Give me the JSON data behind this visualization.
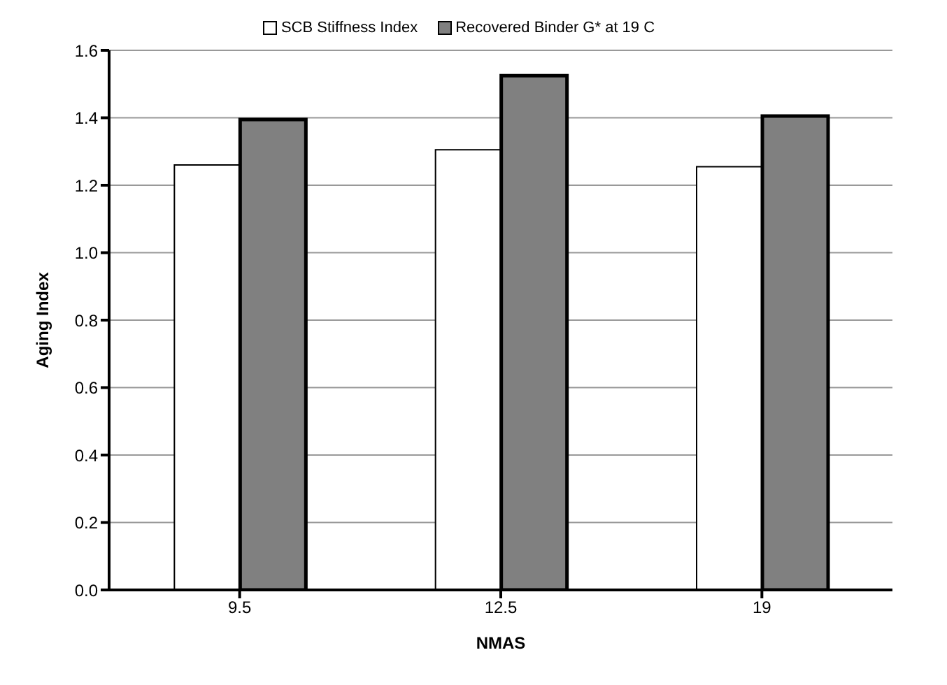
{
  "chart_data": {
    "type": "bar",
    "xlabel": "NMAS",
    "ylabel": "Aging Index",
    "categories": [
      "9.5",
      "12.5",
      "19"
    ],
    "series": [
      {
        "name": "SCB Stiffness Index",
        "color": "#ffffff",
        "values": [
          1.26,
          1.305,
          1.255
        ]
      },
      {
        "name": "Recovered Binder G* at 19 C",
        "color": "#808080",
        "values": [
          1.395,
          1.525,
          1.405
        ]
      }
    ],
    "ylim": [
      0,
      1.6
    ],
    "yticks": [
      {
        "value": 0,
        "label": "0.0"
      },
      {
        "value": 0.2,
        "label": "0.2"
      },
      {
        "value": 0.4,
        "label": "0.4"
      },
      {
        "value": 0.6,
        "label": "0.6"
      },
      {
        "value": 0.8,
        "label": "0.8"
      },
      {
        "value": 1,
        "label": "1.0"
      },
      {
        "value": 1.2,
        "label": "1.2"
      },
      {
        "value": 1.4,
        "label": "1.4"
      },
      {
        "value": 1.6,
        "label": "1.6"
      }
    ],
    "grid": "y",
    "legend": "top"
  }
}
